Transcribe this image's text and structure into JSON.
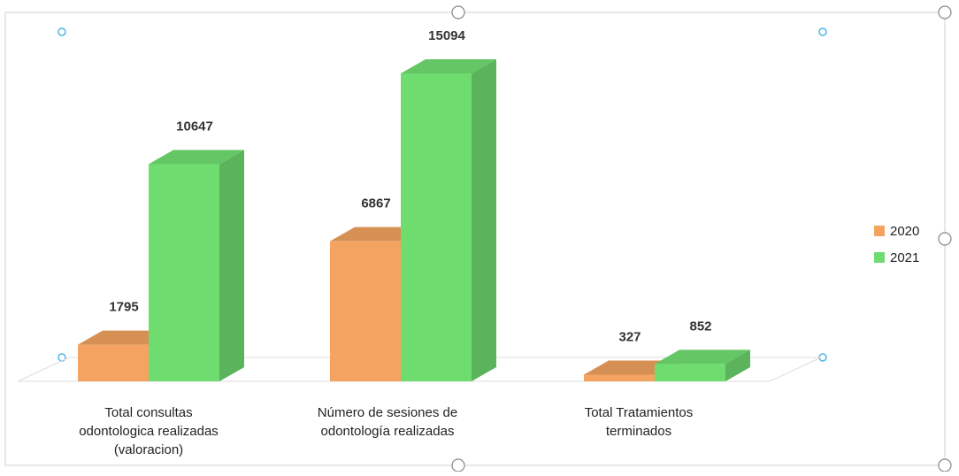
{
  "chart_data": {
    "type": "bar",
    "title": "",
    "xlabel": "",
    "ylabel": "",
    "categories": [
      [
        "Total consultas",
        "odontologica realizadas",
        "(valoracion)"
      ],
      [
        "Número de sesiones de",
        "odontología realizadas"
      ],
      [
        "Total Tratamientos",
        "terminados"
      ]
    ],
    "series": [
      {
        "name": "2020",
        "values": [
          1795,
          6867,
          327
        ],
        "color": "#f4a460"
      },
      {
        "name": "2021",
        "values": [
          10647,
          15094,
          852
        ],
        "color": "#6fdc6f"
      }
    ],
    "ylim": [
      0,
      15094
    ],
    "grid": false,
    "legend_position": "right",
    "style": "3d-clustered-column"
  },
  "legend": {
    "items": [
      {
        "label": "2020",
        "color": "#f4a460"
      },
      {
        "label": "2021",
        "color": "#6fdc6f"
      }
    ]
  }
}
